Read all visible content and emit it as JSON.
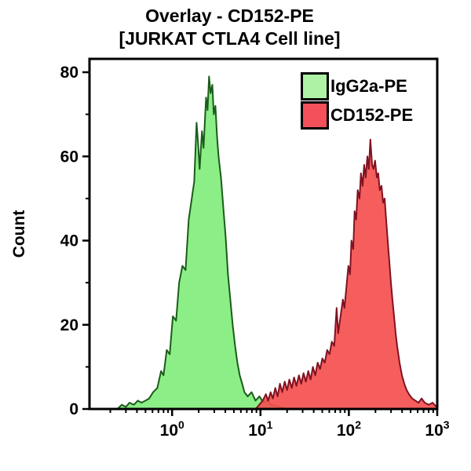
{
  "title": {
    "line1": "Overlay - CD152-PE",
    "line2": "[JURKAT CTLA4 Cell line]"
  },
  "axes": {
    "y_label": "Count",
    "y_major_ticks": [
      0,
      20,
      40,
      60,
      80
    ],
    "y_minor_ticks": [
      10,
      30,
      50,
      70
    ],
    "x_tick_base": "10",
    "x_tick_exponents": [
      0,
      1,
      2,
      3
    ]
  },
  "legend": {
    "items": [
      {
        "label": "IgG2a-PE",
        "color": "#aef2a6"
      },
      {
        "label": "CD152-PE",
        "color": "#f4505c"
      }
    ]
  },
  "colors": {
    "frame": "#000000",
    "background": "#ffffff",
    "green_fill": "#8cee87",
    "green_stroke": "#1a5c1a",
    "red_fill": "#f4504e",
    "red_stroke": "#801222"
  },
  "chart_data": {
    "type": "area",
    "subtype": "flow-cytometry-histogram-overlay",
    "title": "Overlay - CD152-PE [JURKAT CTLA4 Cell line]",
    "xlabel": "",
    "ylabel": "Count",
    "x_scale": "log10",
    "xlim": [
      0.1162,
      1000
    ],
    "ylim": [
      0,
      80
    ],
    "grid": false,
    "legend_position": "top-right",
    "series": [
      {
        "name": "IgG2a-PE",
        "fill": "#8cee87",
        "stroke": "#1a5c1a",
        "points": [
          [
            0.24,
            0
          ],
          [
            0.27,
            1
          ],
          [
            0.3,
            0.5
          ],
          [
            0.33,
            1.5
          ],
          [
            0.37,
            1
          ],
          [
            0.41,
            2
          ],
          [
            0.45,
            1.5
          ],
          [
            0.5,
            2
          ],
          [
            0.55,
            2.5
          ],
          [
            0.61,
            4
          ],
          [
            0.68,
            5
          ],
          [
            0.75,
            9
          ],
          [
            0.8,
            8
          ],
          [
            0.87,
            14
          ],
          [
            0.94,
            13
          ],
          [
            1.02,
            22
          ],
          [
            1.11,
            21
          ],
          [
            1.2,
            30
          ],
          [
            1.31,
            34
          ],
          [
            1.42,
            33
          ],
          [
            1.54,
            45
          ],
          [
            1.67,
            50
          ],
          [
            1.78,
            54
          ],
          [
            1.89,
            68
          ],
          [
            1.97,
            63
          ],
          [
            2.05,
            57
          ],
          [
            2.18,
            66
          ],
          [
            2.27,
            62
          ],
          [
            2.42,
            74
          ],
          [
            2.52,
            71
          ],
          [
            2.62,
            79
          ],
          [
            2.73,
            75
          ],
          [
            2.85,
            77
          ],
          [
            2.96,
            70
          ],
          [
            3.09,
            72
          ],
          [
            3.22,
            65
          ],
          [
            3.35,
            60
          ],
          [
            3.57,
            55
          ],
          [
            3.79,
            48
          ],
          [
            4.03,
            41
          ],
          [
            4.29,
            32
          ],
          [
            4.56,
            26
          ],
          [
            4.85,
            20
          ],
          [
            5.16,
            15
          ],
          [
            5.48,
            11
          ],
          [
            5.83,
            8
          ],
          [
            6.2,
            6
          ],
          [
            6.59,
            4
          ],
          [
            7.16,
            3
          ],
          [
            7.93,
            4
          ],
          [
            8.79,
            2
          ],
          [
            9.73,
            3
          ],
          [
            10.8,
            1.5
          ],
          [
            11.9,
            2
          ],
          [
            13.2,
            1
          ],
          [
            14.7,
            0.8
          ],
          [
            16.2,
            0.5
          ],
          [
            18.0,
            0.3
          ],
          [
            20.0,
            0
          ]
        ]
      },
      {
        "name": "CD152-PE",
        "fill": "#f4504e",
        "stroke": "#801222",
        "points": [
          [
            8.8,
            0
          ],
          [
            9.7,
            1
          ],
          [
            10.6,
            2
          ],
          [
            11.5,
            3.5
          ],
          [
            12.2,
            2
          ],
          [
            13.0,
            4
          ],
          [
            13.8,
            2.5
          ],
          [
            14.7,
            5
          ],
          [
            15.6,
            3
          ],
          [
            16.6,
            6
          ],
          [
            17.6,
            4
          ],
          [
            18.8,
            6.5
          ],
          [
            20.0,
            4.5
          ],
          [
            21.2,
            7
          ],
          [
            22.6,
            5
          ],
          [
            24.0,
            7.5
          ],
          [
            25.5,
            5.5
          ],
          [
            27.2,
            8
          ],
          [
            28.9,
            6
          ],
          [
            30.7,
            8.5
          ],
          [
            32.6,
            6.5
          ],
          [
            34.7,
            9
          ],
          [
            36.9,
            7
          ],
          [
            39.2,
            10
          ],
          [
            41.7,
            8
          ],
          [
            44.4,
            11
          ],
          [
            47.2,
            9.5
          ],
          [
            50.2,
            12
          ],
          [
            53.4,
            11
          ],
          [
            56.8,
            14
          ],
          [
            60.4,
            13
          ],
          [
            64.2,
            16
          ],
          [
            68.3,
            15
          ],
          [
            72.6,
            24
          ],
          [
            75.7,
            18
          ],
          [
            80.5,
            22
          ],
          [
            85.6,
            26
          ],
          [
            89.2,
            24
          ],
          [
            94.8,
            30
          ],
          [
            98.8,
            34
          ],
          [
            103,
            32
          ],
          [
            107,
            40
          ],
          [
            112,
            38
          ],
          [
            116,
            47
          ],
          [
            121,
            45
          ],
          [
            126,
            52
          ],
          [
            132,
            50
          ],
          [
            137,
            56
          ],
          [
            143,
            53
          ],
          [
            149,
            58
          ],
          [
            155,
            55
          ],
          [
            162,
            60
          ],
          [
            168,
            57
          ],
          [
            175,
            64
          ],
          [
            183,
            58
          ],
          [
            190,
            57
          ],
          [
            198,
            59
          ],
          [
            207,
            55
          ],
          [
            215,
            56
          ],
          [
            224,
            52
          ],
          [
            234,
            53
          ],
          [
            244,
            49
          ],
          [
            254,
            50
          ],
          [
            264,
            45
          ],
          [
            275,
            40
          ],
          [
            287,
            35
          ],
          [
            299,
            30
          ],
          [
            311,
            26
          ],
          [
            325,
            22
          ],
          [
            338,
            18
          ],
          [
            352,
            15
          ],
          [
            375,
            11
          ],
          [
            398,
            8
          ],
          [
            424,
            6
          ],
          [
            450,
            4.5
          ],
          [
            479,
            3.5
          ],
          [
            520,
            2.5
          ],
          [
            565,
            2
          ],
          [
            613,
            1.5
          ],
          [
            665,
            2.5
          ],
          [
            723,
            1.5
          ],
          [
            800,
            1
          ],
          [
            887,
            1.5
          ],
          [
            982,
            0.5
          ],
          [
            1000,
            0
          ]
        ]
      }
    ]
  }
}
